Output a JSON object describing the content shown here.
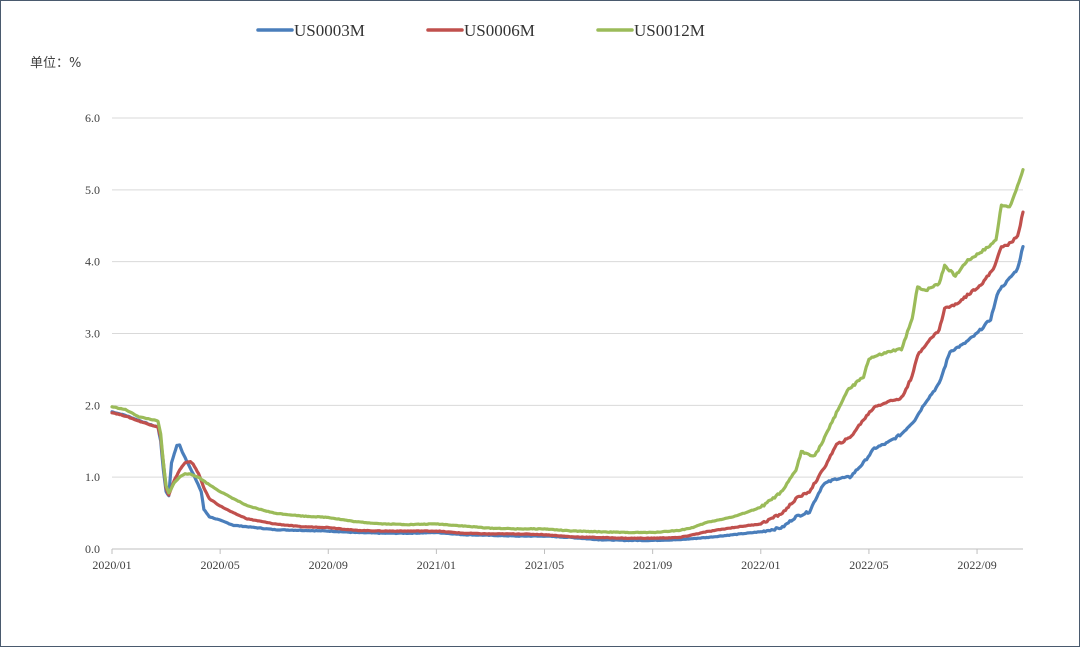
{
  "chart_data": {
    "type": "line",
    "unit_label": "单位：%",
    "ylim": [
      0,
      6
    ],
    "y_ticks": [
      "0.0",
      "1.0",
      "2.0",
      "3.0",
      "4.0",
      "5.0",
      "6.0"
    ],
    "x_ticks": [
      {
        "label": "2020/01",
        "month": 0
      },
      {
        "label": "2020/05",
        "month": 4
      },
      {
        "label": "2020/09",
        "month": 8
      },
      {
        "label": "2021/01",
        "month": 12
      },
      {
        "label": "2021/05",
        "month": 16
      },
      {
        "label": "2021/09",
        "month": 20
      },
      {
        "label": "2022/01",
        "month": 24
      },
      {
        "label": "2022/05",
        "month": 28
      },
      {
        "label": "2022/09",
        "month": 32
      }
    ],
    "grid": "horizontal",
    "legend_position": "top-center",
    "series": [
      {
        "name": "US0003M",
        "color": "#4a7ebb",
        "points": [
          [
            0.0,
            1.91
          ],
          [
            0.5,
            1.86
          ],
          [
            1.0,
            1.79
          ],
          [
            1.5,
            1.72
          ],
          [
            1.7,
            1.7
          ],
          [
            1.8,
            1.5
          ],
          [
            1.9,
            1.1
          ],
          [
            2.0,
            0.8
          ],
          [
            2.1,
            0.74
          ],
          [
            2.2,
            1.2
          ],
          [
            2.4,
            1.44
          ],
          [
            2.5,
            1.45
          ],
          [
            2.6,
            1.35
          ],
          [
            2.8,
            1.2
          ],
          [
            3.0,
            1.05
          ],
          [
            3.3,
            0.8
          ],
          [
            3.4,
            0.55
          ],
          [
            3.6,
            0.45
          ],
          [
            4.0,
            0.4
          ],
          [
            4.5,
            0.33
          ],
          [
            5.0,
            0.31
          ],
          [
            6.0,
            0.27
          ],
          [
            7.0,
            0.26
          ],
          [
            8.0,
            0.25
          ],
          [
            9.0,
            0.23
          ],
          [
            10.0,
            0.22
          ],
          [
            11.0,
            0.22
          ],
          [
            12.0,
            0.23
          ],
          [
            13.0,
            0.2
          ],
          [
            14.0,
            0.19
          ],
          [
            15.0,
            0.18
          ],
          [
            16.0,
            0.18
          ],
          [
            17.0,
            0.16
          ],
          [
            18.0,
            0.13
          ],
          [
            19.0,
            0.12
          ],
          [
            20.0,
            0.12
          ],
          [
            21.0,
            0.13
          ],
          [
            22.0,
            0.16
          ],
          [
            23.0,
            0.2
          ],
          [
            24.0,
            0.24
          ],
          [
            24.8,
            0.3
          ],
          [
            25.3,
            0.45
          ],
          [
            25.8,
            0.52
          ],
          [
            26.3,
            0.9
          ],
          [
            26.8,
            0.98
          ],
          [
            27.3,
            1.0
          ],
          [
            27.8,
            1.2
          ],
          [
            28.2,
            1.4
          ],
          [
            28.7,
            1.48
          ],
          [
            29.2,
            1.6
          ],
          [
            29.7,
            1.8
          ],
          [
            30.1,
            2.05
          ],
          [
            30.6,
            2.3
          ],
          [
            31.0,
            2.75
          ],
          [
            31.5,
            2.85
          ],
          [
            32.0,
            3.0
          ],
          [
            32.5,
            3.2
          ],
          [
            32.8,
            3.6
          ],
          [
            33.1,
            3.72
          ],
          [
            33.5,
            3.9
          ],
          [
            33.7,
            4.21
          ]
        ]
      },
      {
        "name": "US0006M",
        "color": "#c0504d",
        "points": [
          [
            0.0,
            1.9
          ],
          [
            0.5,
            1.85
          ],
          [
            1.0,
            1.78
          ],
          [
            1.5,
            1.72
          ],
          [
            1.7,
            1.7
          ],
          [
            1.8,
            1.55
          ],
          [
            1.9,
            1.2
          ],
          [
            2.0,
            0.85
          ],
          [
            2.1,
            0.75
          ],
          [
            2.3,
            0.95
          ],
          [
            2.5,
            1.1
          ],
          [
            2.7,
            1.2
          ],
          [
            2.9,
            1.22
          ],
          [
            3.0,
            1.18
          ],
          [
            3.2,
            1.05
          ],
          [
            3.4,
            0.85
          ],
          [
            3.6,
            0.7
          ],
          [
            4.0,
            0.6
          ],
          [
            4.5,
            0.5
          ],
          [
            5.0,
            0.42
          ],
          [
            6.0,
            0.35
          ],
          [
            7.0,
            0.31
          ],
          [
            8.0,
            0.3
          ],
          [
            9.0,
            0.26
          ],
          [
            10.0,
            0.25
          ],
          [
            11.0,
            0.25
          ],
          [
            12.0,
            0.25
          ],
          [
            13.0,
            0.22
          ],
          [
            14.0,
            0.21
          ],
          [
            15.0,
            0.21
          ],
          [
            16.0,
            0.2
          ],
          [
            17.0,
            0.17
          ],
          [
            18.0,
            0.16
          ],
          [
            19.0,
            0.15
          ],
          [
            20.0,
            0.15
          ],
          [
            21.0,
            0.16
          ],
          [
            22.0,
            0.24
          ],
          [
            23.0,
            0.3
          ],
          [
            24.0,
            0.35
          ],
          [
            24.8,
            0.5
          ],
          [
            25.3,
            0.7
          ],
          [
            25.8,
            0.8
          ],
          [
            26.3,
            1.1
          ],
          [
            26.8,
            1.45
          ],
          [
            27.3,
            1.55
          ],
          [
            27.8,
            1.8
          ],
          [
            28.2,
            1.98
          ],
          [
            28.7,
            2.05
          ],
          [
            29.2,
            2.1
          ],
          [
            29.6,
            2.4
          ],
          [
            29.8,
            2.7
          ],
          [
            30.1,
            2.85
          ],
          [
            30.6,
            3.05
          ],
          [
            30.8,
            3.35
          ],
          [
            31.2,
            3.4
          ],
          [
            31.7,
            3.55
          ],
          [
            32.2,
            3.7
          ],
          [
            32.6,
            3.9
          ],
          [
            32.9,
            4.2
          ],
          [
            33.2,
            4.25
          ],
          [
            33.5,
            4.35
          ],
          [
            33.7,
            4.69
          ]
        ]
      },
      {
        "name": "US0012M",
        "color": "#9bbb59",
        "points": [
          [
            0.0,
            1.98
          ],
          [
            0.5,
            1.94
          ],
          [
            1.0,
            1.84
          ],
          [
            1.5,
            1.8
          ],
          [
            1.7,
            1.78
          ],
          [
            1.8,
            1.6
          ],
          [
            1.9,
            1.2
          ],
          [
            2.0,
            0.88
          ],
          [
            2.1,
            0.78
          ],
          [
            2.3,
            0.92
          ],
          [
            2.5,
            1.0
          ],
          [
            2.7,
            1.05
          ],
          [
            2.9,
            1.04
          ],
          [
            3.2,
            1.0
          ],
          [
            3.5,
            0.92
          ],
          [
            4.0,
            0.8
          ],
          [
            4.5,
            0.7
          ],
          [
            5.0,
            0.6
          ],
          [
            6.0,
            0.5
          ],
          [
            7.0,
            0.46
          ],
          [
            8.0,
            0.44
          ],
          [
            9.0,
            0.38
          ],
          [
            10.0,
            0.35
          ],
          [
            11.0,
            0.34
          ],
          [
            12.0,
            0.35
          ],
          [
            13.0,
            0.32
          ],
          [
            14.0,
            0.29
          ],
          [
            15.0,
            0.28
          ],
          [
            16.0,
            0.28
          ],
          [
            17.0,
            0.25
          ],
          [
            18.0,
            0.24
          ],
          [
            19.0,
            0.23
          ],
          [
            20.0,
            0.23
          ],
          [
            21.0,
            0.26
          ],
          [
            21.5,
            0.3
          ],
          [
            22.0,
            0.37
          ],
          [
            23.0,
            0.45
          ],
          [
            24.0,
            0.58
          ],
          [
            24.8,
            0.8
          ],
          [
            25.3,
            1.1
          ],
          [
            25.5,
            1.35
          ],
          [
            26.0,
            1.3
          ],
          [
            26.3,
            1.5
          ],
          [
            26.8,
            1.9
          ],
          [
            27.2,
            2.2
          ],
          [
            27.8,
            2.4
          ],
          [
            28.0,
            2.65
          ],
          [
            28.4,
            2.7
          ],
          [
            28.8,
            2.75
          ],
          [
            29.2,
            2.78
          ],
          [
            29.6,
            3.2
          ],
          [
            29.8,
            3.65
          ],
          [
            30.1,
            3.6
          ],
          [
            30.6,
            3.7
          ],
          [
            30.8,
            3.95
          ],
          [
            31.2,
            3.8
          ],
          [
            31.6,
            4.0
          ],
          [
            32.0,
            4.1
          ],
          [
            32.4,
            4.2
          ],
          [
            32.7,
            4.3
          ],
          [
            32.9,
            4.8
          ],
          [
            33.2,
            4.75
          ],
          [
            33.5,
            5.05
          ],
          [
            33.7,
            5.28
          ]
        ]
      }
    ]
  }
}
